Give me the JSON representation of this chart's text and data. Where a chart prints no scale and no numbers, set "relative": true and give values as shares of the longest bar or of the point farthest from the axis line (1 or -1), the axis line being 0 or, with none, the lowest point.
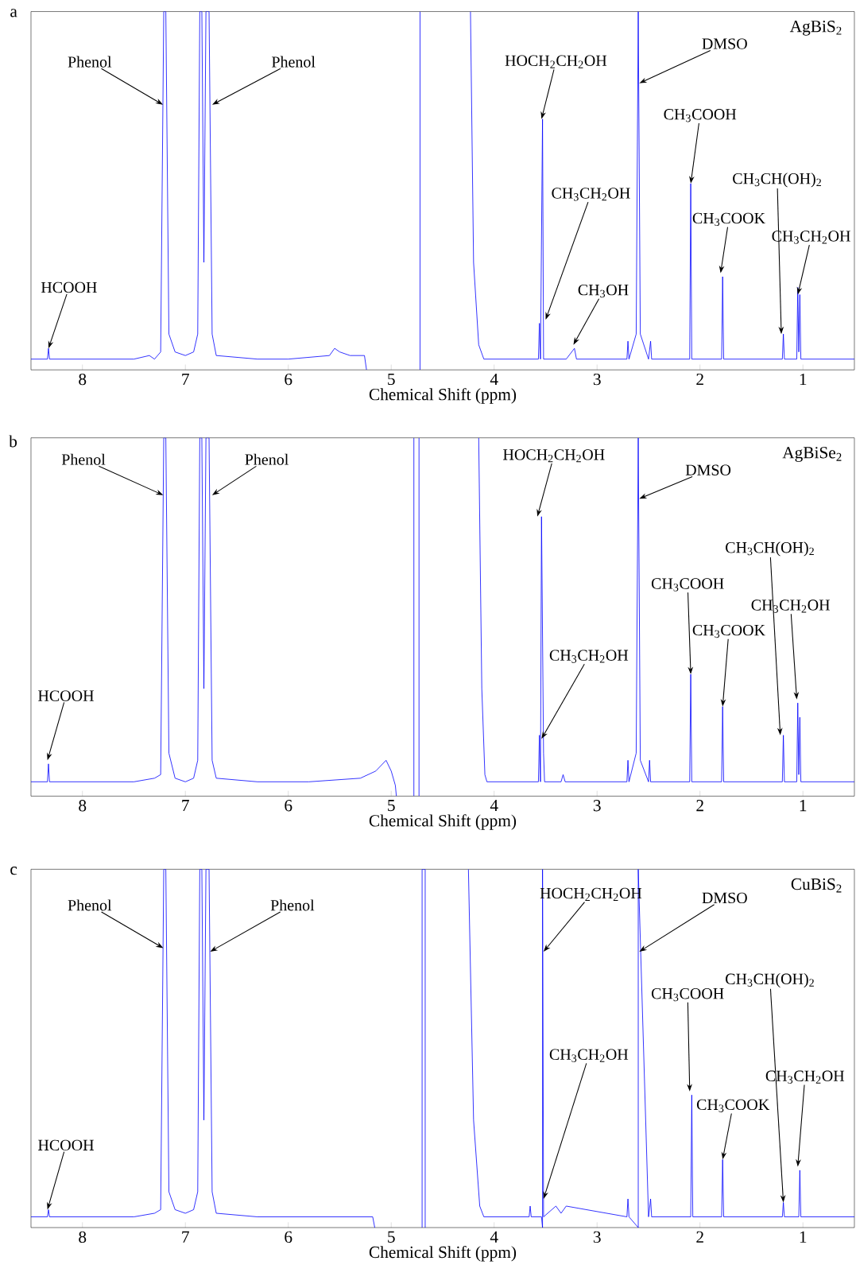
{
  "chart_data": [
    {
      "type": "line",
      "title": "a",
      "subtitle": "AgBiS$_{2}$",
      "xlabel": "Chemical Shift (ppm)",
      "relative": true,
      "color": "#0000ff",
      "xlim": [
        8.5,
        0.5
      ],
      "xticks": [
        8,
        7,
        6,
        5,
        4,
        3,
        2,
        1
      ],
      "x": [
        8.5,
        8.36,
        8.34,
        8.33,
        8.32,
        7.5,
        7.35,
        7.3,
        7.24,
        7.21,
        7.19,
        7.16,
        7.1,
        7.0,
        6.92,
        6.88,
        6.86,
        6.84,
        6.82,
        6.8,
        6.77,
        6.74,
        6.7,
        6.3,
        6.0,
        5.6,
        5.55,
        5.5,
        5.4,
        5.26,
        5.24,
        5.0,
        4.72,
        4.72,
        4.5,
        4.23,
        4.2,
        4.15,
        4.1,
        3.7,
        3.57,
        3.56,
        3.55,
        3.53,
        3.52,
        3.3,
        3.22,
        3.2,
        2.71,
        2.7,
        2.69,
        2.62,
        2.6,
        2.58,
        2.5,
        2.48,
        2.47,
        2.1,
        2.09,
        2.08,
        1.79,
        1.78,
        1.77,
        1.2,
        1.19,
        1.18,
        1.06,
        1.05,
        1.04,
        1.03,
        1.02,
        0.5
      ],
      "values": [
        0.03,
        0.03,
        0.03,
        0.06,
        0.03,
        0.03,
        0.04,
        0.03,
        0.05,
        1,
        1,
        0.1,
        0.05,
        0.04,
        0.05,
        0.1,
        1,
        1,
        0.3,
        1,
        1,
        0.1,
        0.04,
        0.03,
        0.03,
        0.04,
        0.06,
        0.05,
        0.04,
        0.04,
        0,
        null,
        0,
        1,
        null,
        1,
        0.3,
        0.07,
        0.03,
        0.03,
        0.03,
        0.13,
        0.03,
        0.7,
        0.03,
        0.03,
        0.06,
        0.03,
        0.03,
        0.08,
        0.03,
        0.1,
        1,
        0.1,
        0.03,
        0.08,
        0.03,
        0.03,
        0.52,
        0.03,
        0.03,
        0.26,
        0.03,
        0.03,
        0.1,
        0.03,
        0.03,
        0.23,
        0.05,
        0.21,
        0.03,
        0.03
      ],
      "annotations": [
        {
          "text": "Phenol",
          "x": 7.218,
          "y": 0.74
        },
        {
          "text": "Phenol",
          "x": 6.74,
          "y": 0.74
        },
        {
          "text": "HOCH$_{2}$CH$_{2}$OH",
          "x": 3.54,
          "y": 0.7
        },
        {
          "text": "DMSO",
          "x": 2.59,
          "y": 0.8
        },
        {
          "text": "CH$_{3}$COOH",
          "x": 2.09,
          "y": 0.52
        },
        {
          "text": "CH$_{3}$CH$_{2}$OH",
          "x": 3.5,
          "y": 0.14
        },
        {
          "text": "CH$_{3}$OH",
          "x": 3.23,
          "y": 0.07
        },
        {
          "text": "CH$_{3}$COOK",
          "x": 1.8,
          "y": 0.27
        },
        {
          "text": "CH$_{3}$CH(OH)$_{2}$",
          "x": 1.21,
          "y": 0.1
        },
        {
          "text": "CH$_{3}$CH$_{2}$OH",
          "x": 1.05,
          "y": 0.21
        },
        {
          "text": "HCOOH",
          "x": 8.33,
          "y": 0.06
        }
      ]
    },
    {
      "type": "line",
      "title": "b",
      "subtitle": "AgBiSe$_{2}$",
      "xlabel": "Chemical Shift (ppm)",
      "relative": true,
      "color": "#0000ff",
      "xlim": [
        8.5,
        0.5
      ],
      "xticks": [
        8,
        7,
        6,
        5,
        4,
        3,
        2,
        1
      ],
      "x": [
        8.5,
        8.35,
        8.34,
        8.33,
        8.32,
        7.5,
        7.3,
        7.24,
        7.21,
        7.19,
        7.16,
        7.1,
        7.0,
        6.92,
        6.88,
        6.86,
        6.84,
        6.82,
        6.8,
        6.77,
        6.74,
        6.7,
        6.3,
        5.8,
        5.3,
        5.15,
        5.05,
        5.0,
        4.96,
        4.95,
        4.85,
        4.78,
        4.78,
        4.76,
        4.73,
        4.73,
        4.5,
        4.15,
        4.12,
        4.09,
        4.07,
        3.7,
        3.57,
        3.56,
        3.55,
        3.54,
        3.52,
        3.51,
        3.35,
        3.33,
        3.31,
        2.71,
        2.7,
        2.69,
        2.62,
        2.6,
        2.58,
        2.5,
        2.49,
        2.48,
        2.1,
        2.09,
        2.08,
        1.79,
        1.78,
        1.77,
        1.2,
        1.19,
        1.18,
        1.06,
        1.05,
        1.04,
        1.03,
        1.02,
        0.5
      ],
      "values": [
        0.04,
        0.04,
        0.04,
        0.09,
        0.04,
        0.04,
        0.05,
        0.06,
        1,
        1,
        0.12,
        0.05,
        0.04,
        0.05,
        0.1,
        1,
        1,
        0.3,
        1,
        1,
        0.1,
        0.05,
        0.04,
        0.04,
        0.05,
        0.07,
        0.1,
        0.07,
        0.03,
        0,
        null,
        0,
        1,
        null,
        1,
        0,
        null,
        1,
        0.3,
        0.06,
        0.04,
        0.04,
        0.04,
        0.17,
        0.04,
        0.78,
        0.12,
        0.04,
        0.04,
        0.06,
        0.04,
        0.04,
        0.1,
        0.04,
        0.12,
        1,
        0.1,
        0.04,
        0.1,
        0.04,
        0.04,
        0.34,
        0.04,
        0.04,
        0.25,
        0.04,
        0.04,
        0.17,
        0.04,
        0.04,
        0.26,
        0.06,
        0.22,
        0.04,
        0.04
      ],
      "annotations": [
        {
          "text": "Phenol",
          "x": 7.215,
          "y": 0.84
        },
        {
          "text": "Phenol",
          "x": 6.74,
          "y": 0.84
        },
        {
          "text": "HOCH$_{2}$CH$_{2}$OH",
          "x": 3.58,
          "y": 0.78
        },
        {
          "text": "DMSO",
          "x": 2.59,
          "y": 0.83
        },
        {
          "text": "CH$_{3}$COOH",
          "x": 2.09,
          "y": 0.34
        },
        {
          "text": "CH$_{3}$CH$_{2}$OH",
          "x": 3.54,
          "y": 0.16
        },
        {
          "text": "CH$_{3}$COOK",
          "x": 1.78,
          "y": 0.25
        },
        {
          "text": "CH$_{3}$CH(OH)$_{2}$",
          "x": 1.22,
          "y": 0.17
        },
        {
          "text": "CH$_{3}$CH$_{2}$OH",
          "x": 1.06,
          "y": 0.27
        },
        {
          "text": "HCOOH",
          "x": 8.34,
          "y": 0.1
        }
      ]
    },
    {
      "type": "line",
      "title": "c",
      "subtitle": "CuBiS$_{2}$",
      "xlabel": "Chemical Shift (ppm)",
      "relative": true,
      "color": "#0000ff",
      "xlim": [
        8.5,
        0.5
      ],
      "xticks": [
        8,
        7,
        6,
        5,
        4,
        3,
        2,
        1
      ],
      "x": [
        8.5,
        8.35,
        8.34,
        8.33,
        8.32,
        7.5,
        7.3,
        7.24,
        7.21,
        7.19,
        7.16,
        7.1,
        7.0,
        6.92,
        6.88,
        6.86,
        6.84,
        6.82,
        6.8,
        6.77,
        6.74,
        6.7,
        6.3,
        5.8,
        5.18,
        5.16,
        5.0,
        4.7,
        4.7,
        4.67,
        4.67,
        4.5,
        4.25,
        4.2,
        4.14,
        4.1,
        3.7,
        3.66,
        3.65,
        3.64,
        3.54,
        3.53,
        3.53,
        3.52,
        3.4,
        3.35,
        3.3,
        2.71,
        2.7,
        2.69,
        2.6,
        2.6,
        2.5,
        2.48,
        2.47,
        2.09,
        2.08,
        2.07,
        1.79,
        1.78,
        1.77,
        1.2,
        1.19,
        1.18,
        1.04,
        1.03,
        1.02,
        0.5
      ],
      "values": [
        0.03,
        0.03,
        0.03,
        0.05,
        0.03,
        0.03,
        0.04,
        0.05,
        1,
        1,
        0.1,
        0.05,
        0.04,
        0.05,
        0.1,
        1,
        1,
        0.3,
        1,
        1,
        0.1,
        0.04,
        0.03,
        0.03,
        0.03,
        0,
        null,
        0,
        1,
        1,
        0,
        null,
        1,
        0.3,
        0.06,
        0.03,
        0.03,
        0.03,
        0.06,
        0.03,
        0.03,
        0,
        1,
        0.03,
        0.06,
        0.04,
        0.06,
        0.03,
        0.08,
        0.03,
        0,
        1,
        0.03,
        0.08,
        0.03,
        0.03,
        0.37,
        0.03,
        0.03,
        0.19,
        0.03,
        0.03,
        0.07,
        0.03,
        0.03,
        0.16,
        0.03,
        0.03
      ],
      "annotations": [
        {
          "text": "Phenol",
          "x": 7.215,
          "y": 0.78
        },
        {
          "text": "Phenol",
          "x": 6.76,
          "y": 0.77
        },
        {
          "text": "HOCH$_{2}$CH$_{2}$OH",
          "x": 3.52,
          "y": 0.77
        },
        {
          "text": "DMSO",
          "x": 2.59,
          "y": 0.77
        },
        {
          "text": "CH$_{3}$COOH",
          "x": 2.1,
          "y": 0.38
        },
        {
          "text": "CH$_{3}$CH$_{2}$OH",
          "x": 3.52,
          "y": 0.08
        },
        {
          "text": "CH$_{3}$COOK",
          "x": 1.78,
          "y": 0.19
        },
        {
          "text": "CH$_{3}$CH(OH)$_{2}$",
          "x": 1.19,
          "y": 0.07
        },
        {
          "text": "CH$_{3}$CH$_{2}$OH",
          "x": 1.05,
          "y": 0.17
        },
        {
          "text": "HCOOH",
          "x": 8.34,
          "y": 0.05
        }
      ]
    }
  ]
}
